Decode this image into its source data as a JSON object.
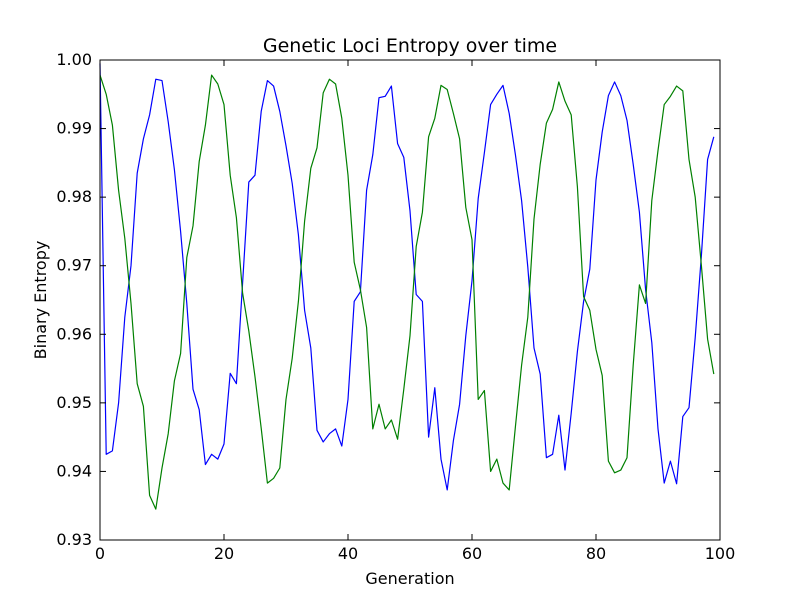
{
  "chart_data": {
    "type": "line",
    "title": "Genetic Loci Entropy over time",
    "xlabel": "Generation",
    "ylabel": "Binary Entropy",
    "xlim": [
      0,
      100
    ],
    "ylim": [
      0.93,
      1.0
    ],
    "x_ticks": [
      0,
      20,
      40,
      60,
      80,
      100
    ],
    "x_tick_labels": [
      "0",
      "20",
      "40",
      "60",
      "80",
      "100"
    ],
    "y_ticks": [
      0.93,
      0.94,
      0.95,
      0.96,
      0.97,
      0.98,
      0.99,
      1.0
    ],
    "y_tick_labels": [
      "0.93",
      "0.94",
      "0.95",
      "0.96",
      "0.97",
      "0.98",
      "0.99",
      "1.00"
    ],
    "grid": false,
    "x": [
      0,
      1,
      2,
      3,
      4,
      5,
      6,
      7,
      8,
      9,
      10,
      11,
      12,
      13,
      14,
      15,
      16,
      17,
      18,
      19,
      20,
      21,
      22,
      23,
      24,
      25,
      26,
      27,
      28,
      29,
      30,
      31,
      32,
      33,
      34,
      35,
      36,
      37,
      38,
      39,
      40,
      41,
      42,
      43,
      44,
      45,
      46,
      47,
      48,
      49,
      50,
      51,
      52,
      53,
      54,
      55,
      56,
      57,
      58,
      59,
      60,
      61,
      62,
      63,
      64,
      65,
      66,
      67,
      68,
      69,
      70,
      71,
      72,
      73,
      74,
      75,
      76,
      77,
      78,
      79,
      80,
      81,
      82,
      83,
      84,
      85,
      86,
      87,
      88,
      89,
      90,
      91,
      92,
      93,
      94,
      95,
      96,
      97,
      98,
      99
    ],
    "series": [
      {
        "color": "#0000ff",
        "values": [
          0.9995,
          0.9425,
          0.943,
          0.95,
          0.9625,
          0.97,
          0.9835,
          0.9885,
          0.992,
          0.9972,
          0.997,
          0.991,
          0.984,
          0.975,
          0.9645,
          0.952,
          0.949,
          0.941,
          0.9425,
          0.9418,
          0.944,
          0.9543,
          0.9528,
          0.9675,
          0.9822,
          0.9832,
          0.9925,
          0.997,
          0.9962,
          0.9925,
          0.9875,
          0.982,
          0.9745,
          0.9635,
          0.958,
          0.946,
          0.9443,
          0.9455,
          0.9462,
          0.9437,
          0.9505,
          0.9648,
          0.9662,
          0.981,
          0.9862,
          0.9945,
          0.9947,
          0.9962,
          0.9878,
          0.9858,
          0.978,
          0.9658,
          0.9648,
          0.945,
          0.9522,
          0.9418,
          0.9373,
          0.9445,
          0.9498,
          0.9598,
          0.9678,
          0.9798,
          0.9865,
          0.9935,
          0.995,
          0.9963,
          0.9922,
          0.9862,
          0.9795,
          0.9698,
          0.958,
          0.9542,
          0.942,
          0.9425,
          0.9482,
          0.9402,
          0.9485,
          0.9575,
          0.9648,
          0.9695,
          0.9825,
          0.9895,
          0.9948,
          0.9968,
          0.9948,
          0.9912,
          0.9848,
          0.9778,
          0.9665,
          0.9588,
          0.9462,
          0.9383,
          0.9415,
          0.9382,
          0.948,
          0.9493,
          0.9595,
          0.9715,
          0.9855,
          0.9888
        ]
      },
      {
        "color": "#008000",
        "values": [
          0.9978,
          0.995,
          0.9905,
          0.981,
          0.974,
          0.9645,
          0.9528,
          0.9495,
          0.9365,
          0.9345,
          0.9405,
          0.9455,
          0.9532,
          0.9572,
          0.9712,
          0.9758,
          0.9852,
          0.9905,
          0.9978,
          0.9965,
          0.9935,
          0.9832,
          0.977,
          0.966,
          0.9605,
          0.9538,
          0.9463,
          0.9383,
          0.939,
          0.9405,
          0.9505,
          0.9565,
          0.9648,
          0.9765,
          0.9842,
          0.9872,
          0.9952,
          0.9972,
          0.9965,
          0.9915,
          0.9832,
          0.9705,
          0.9665,
          0.961,
          0.9462,
          0.9498,
          0.9462,
          0.9475,
          0.9447,
          0.952,
          0.9598,
          0.9728,
          0.9778,
          0.9888,
          0.9915,
          0.9963,
          0.9957,
          0.9922,
          0.9885,
          0.9785,
          0.9738,
          0.9505,
          0.9518,
          0.94,
          0.9418,
          0.9383,
          0.9373,
          0.9465,
          0.9555,
          0.9625,
          0.9768,
          0.9848,
          0.9908,
          0.9928,
          0.9968,
          0.994,
          0.992,
          0.9815,
          0.9655,
          0.9635,
          0.9578,
          0.954,
          0.9415,
          0.9398,
          0.9402,
          0.942,
          0.9555,
          0.9672,
          0.9645,
          0.9795,
          0.9868,
          0.9935,
          0.9947,
          0.9962,
          0.9955,
          0.9855,
          0.98,
          0.97,
          0.9593,
          0.9542
        ]
      }
    ]
  }
}
